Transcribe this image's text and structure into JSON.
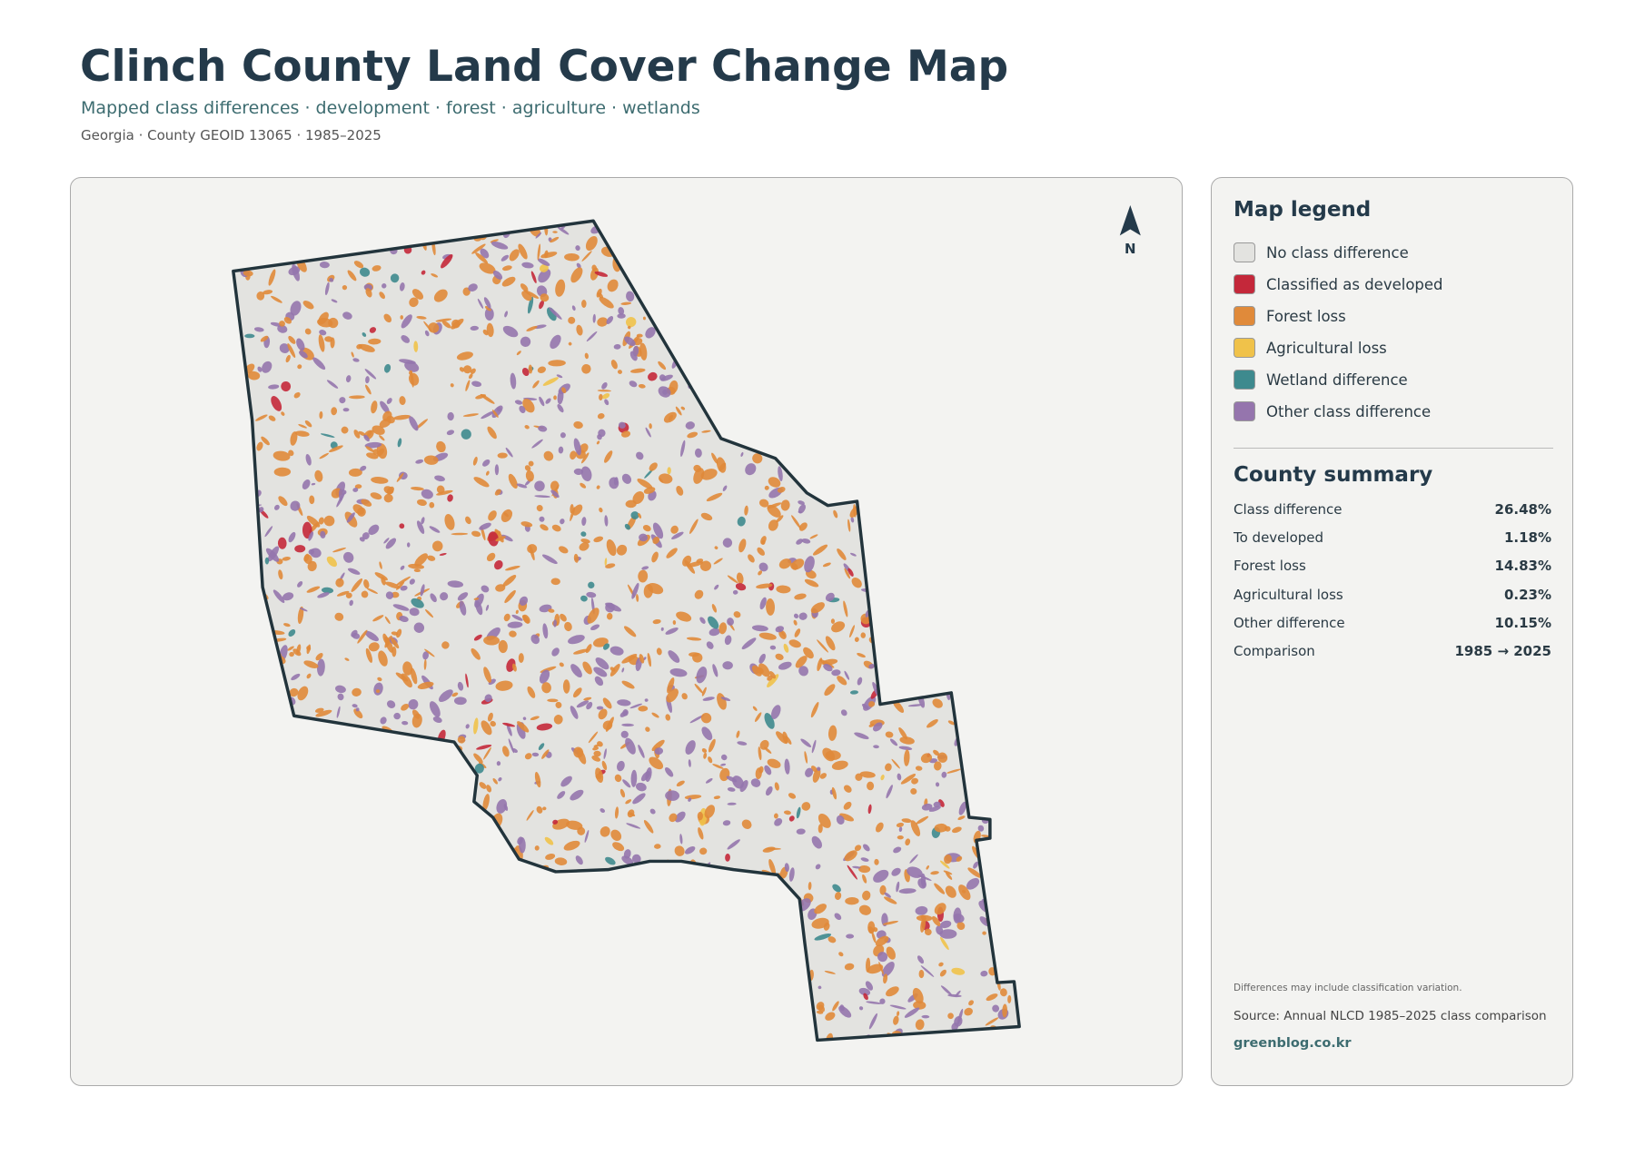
{
  "header": {
    "title": "Clinch County Land Cover Change Map",
    "subtitle": "Mapped class differences · development · forest · agriculture · wetlands",
    "meta": "Georgia · County GEOID 13065 · 1985–2025"
  },
  "map": {
    "north_label": "N"
  },
  "legend": {
    "title": "Map legend",
    "items": [
      {
        "label": "No class difference",
        "color": "#e3e3e0"
      },
      {
        "label": "Classified as developed",
        "color": "#c4283a"
      },
      {
        "label": "Forest loss",
        "color": "#e08a3a"
      },
      {
        "label": "Agricultural loss",
        "color": "#f0c24a"
      },
      {
        "label": "Wetland difference",
        "color": "#3e8a8e"
      },
      {
        "label": "Other class difference",
        "color": "#9575ad"
      }
    ]
  },
  "summary": {
    "title": "County summary",
    "rows": [
      [
        "Class difference",
        "26.48%"
      ],
      [
        "To developed",
        "1.18%"
      ],
      [
        "Forest loss",
        "14.83%"
      ],
      [
        "Agricultural loss",
        "0.23%"
      ],
      [
        "Other difference",
        "10.15%"
      ],
      [
        "Comparison",
        "1985 → 2025"
      ]
    ]
  },
  "footer": {
    "note": "Differences may include classification variation.",
    "source": "Source: Annual NLCD 1985–2025 class comparison",
    "credit": "greenblog.co.kr"
  }
}
